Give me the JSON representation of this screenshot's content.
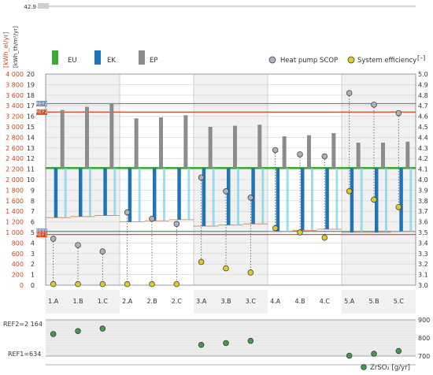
{
  "chart_data": {
    "type": "bar",
    "categories": [
      "1.A",
      "1.B",
      "1.C",
      "2.A",
      "2.B",
      "2.C",
      "3.A",
      "3.B",
      "3.C",
      "4.A",
      "4.B",
      "4.C",
      "5.A",
      "5.B",
      "5.C"
    ],
    "colors": {
      "EU": "#3aaa35",
      "EK": "#1f75b8",
      "EP": "#8c8c8c",
      "scop_marker": "#a9b3c1",
      "eff_marker": "#e0c829",
      "red": "#d0451b",
      "ref_line": "#6f89a8",
      "zr_marker": "#3f9a4a"
    },
    "top_label": "42.9",
    "left_axis": {
      "label_red": "[kWh_el/yr]",
      "label_black": "[kWh_th/m²/yr]",
      "red_ticks": [
        "0",
        "200",
        "400",
        "600",
        "800",
        "1 000",
        "1 200",
        "1 400",
        "1 600",
        "1 800",
        "2 000",
        "2 200",
        "2 400",
        "2 600",
        "2 800",
        "3 000",
        "3 200",
        "3 400",
        "3 600",
        "3 800",
        "4 000"
      ],
      "black_ticks": [
        "0",
        "1",
        "2",
        "3",
        "4",
        "5",
        "6",
        "7",
        "8",
        "9",
        "10",
        "11",
        "12",
        "13",
        "14",
        "15",
        "16",
        "17",
        "18",
        "19",
        "20"
      ],
      "range": [
        0,
        20
      ]
    },
    "right_axis": {
      "label": "[–]",
      "ticks": [
        "3.0",
        "3.1",
        "3.2",
        "3.3",
        "3.4",
        "3.5",
        "3.6",
        "3.7",
        "3.8",
        "3.9",
        "4.0",
        "4.1",
        "4.2",
        "4.3",
        "4.4",
        "4.5",
        "4.6",
        "4.7",
        "4.8",
        "4.9",
        "5.0"
      ],
      "range": [
        3.0,
        5.0
      ]
    },
    "legend": {
      "EU": "EU",
      "EK": "EK",
      "EP": "EP",
      "scop": "Heat pump SCOP",
      "efficiency": "System efficiency"
    },
    "ref_tags": [
      "REF2",
      "REF2",
      "REF1",
      "REF1"
    ],
    "EU_level": 11.1,
    "EP_values": [
      16.6,
      16.9,
      17.2,
      15.8,
      15.9,
      16.1,
      15.0,
      15.1,
      15.2,
      14.1,
      14.2,
      14.4,
      13.5,
      13.5,
      13.6
    ],
    "EK_bottoms": [
      6.4,
      6.5,
      6.6,
      6.0,
      6.1,
      6.2,
      5.6,
      5.7,
      5.8,
      5.1,
      5.2,
      5.3,
      5.0,
      5.0,
      5.1
    ],
    "EK_range": [
      5.5,
      11.0
    ],
    "scop_values": [
      3.44,
      3.38,
      3.32,
      3.69,
      3.63,
      3.58,
      4.02,
      3.89,
      3.83,
      4.28,
      4.24,
      4.22,
      4.82,
      4.71,
      4.63
    ],
    "efficiency_values": [
      3.01,
      3.01,
      3.01,
      3.01,
      3.01,
      3.01,
      3.22,
      3.16,
      3.12,
      3.54,
      3.5,
      3.45,
      3.89,
      3.81,
      3.74
    ],
    "ref_lines": {
      "REF2_upper": 17.2,
      "REF2_lower": 16.4,
      "REF1_upper": 5.1,
      "REF1_lower": 4.8
    },
    "bottom_panel": {
      "left_labels": [
        "REF2=2 164",
        "REF1=634"
      ],
      "right_ticks": [
        "900",
        "800",
        "700"
      ],
      "range": [
        700,
        900
      ],
      "legend": "ZrSO₂ [g/yr]",
      "values": [
        822,
        838,
        852,
        null,
        null,
        null,
        762,
        772,
        784,
        null,
        null,
        null,
        702,
        713,
        728
      ]
    }
  }
}
